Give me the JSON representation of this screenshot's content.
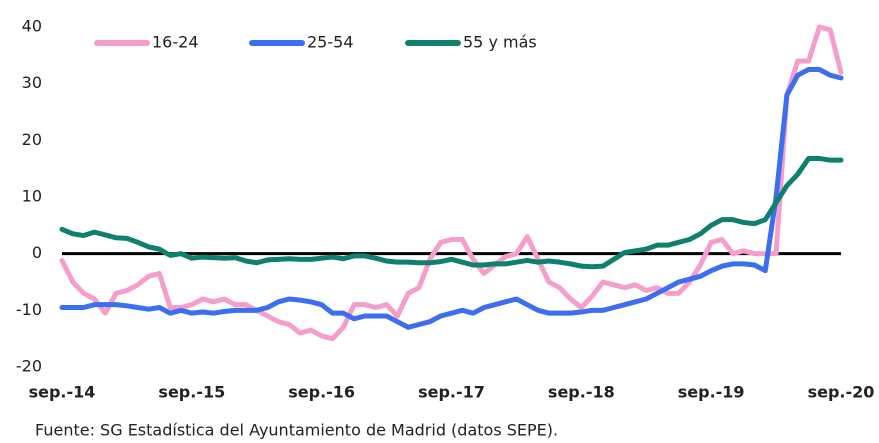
{
  "chart_data": {
    "type": "line",
    "categories": [
      "sep.-14",
      null,
      null,
      null,
      null,
      null,
      null,
      null,
      null,
      null,
      null,
      null,
      "sep.-15",
      null,
      null,
      null,
      null,
      null,
      null,
      null,
      null,
      null,
      null,
      null,
      "sep.-16",
      null,
      null,
      null,
      null,
      null,
      null,
      null,
      null,
      null,
      null,
      null,
      "sep.-17",
      null,
      null,
      null,
      null,
      null,
      null,
      null,
      null,
      null,
      null,
      null,
      "sep.-18",
      null,
      null,
      null,
      null,
      null,
      null,
      null,
      null,
      null,
      null,
      null,
      "sep.-19",
      null,
      null,
      null,
      null,
      null,
      null,
      null,
      null,
      null,
      null,
      null,
      "sep.-20"
    ],
    "series": [
      {
        "name": "16-24",
        "color": "#f59dcb",
        "values": [
          -1.2,
          -5,
          -7,
          -8,
          -10.5,
          -7,
          -6.5,
          -5.5,
          -4,
          -3.5,
          -9.5,
          -9.5,
          -9,
          -8,
          -8.5,
          -8,
          -9,
          -9,
          -10,
          -11,
          -12,
          -12.5,
          -14,
          -13.5,
          -14.5,
          -15,
          -13,
          -9,
          -9,
          -9.5,
          -9,
          -11,
          -7,
          -6,
          -1,
          2,
          2.5,
          2.5,
          -1,
          -3.5,
          -2,
          -0.5,
          0,
          3,
          -1,
          -5,
          -6,
          -8,
          -9.5,
          -7.5,
          -5,
          -5.5,
          -6,
          -5.5,
          -6.5,
          -6,
          -7,
          -7,
          -5,
          -2,
          2,
          2.5,
          0,
          0.5,
          0,
          0,
          0,
          28,
          34,
          34,
          40,
          39.5,
          32
        ]
      },
      {
        "name": "25-54",
        "color": "#3c6ef0",
        "values": [
          -9.5,
          -9.5,
          -9.5,
          -9,
          -9,
          -9,
          -9.2,
          -9.5,
          -9.8,
          -9.5,
          -10.5,
          -10,
          -10.5,
          -10.3,
          -10.5,
          -10.2,
          -10,
          -10,
          -10,
          -9.5,
          -8.5,
          -8,
          -8.2,
          -8.5,
          -9,
          -10.5,
          -10.5,
          -11.5,
          -11,
          -11,
          -11,
          -12,
          -13,
          -12.5,
          -12,
          -11,
          -10.5,
          -10,
          -10.5,
          -9.5,
          -9,
          -8.5,
          -8,
          -9,
          -10,
          -10.5,
          -10.5,
          -10.5,
          -10.3,
          -10,
          -10,
          -9.5,
          -9,
          -8.5,
          -8,
          -7,
          -6,
          -5,
          -4.5,
          -4,
          -3,
          -2.2,
          -1.8,
          -1.8,
          -2,
          -3,
          10,
          28,
          31.5,
          32.5,
          32.5,
          31.5,
          31
        ]
      },
      {
        "name": "55 y más",
        "color": "#0f7f6e",
        "values": [
          4.3,
          3.5,
          3.2,
          3.8,
          3.3,
          2.8,
          2.7,
          2,
          1.2,
          0.8,
          -0.3,
          0,
          -0.8,
          -0.6,
          -0.7,
          -0.8,
          -0.7,
          -1.3,
          -1.6,
          -1.1,
          -1,
          -0.9,
          -1,
          -1,
          -0.8,
          -0.6,
          -0.9,
          -0.4,
          -0.4,
          -0.8,
          -1.3,
          -1.5,
          -1.5,
          -1.6,
          -1.6,
          -1.4,
          -1,
          -1.5,
          -2,
          -2,
          -1.8,
          -1.8,
          -1.5,
          -1.2,
          -1.5,
          -1.3,
          -1.5,
          -1.8,
          -2.2,
          -2.3,
          -2.2,
          -1,
          0.2,
          0.5,
          0.8,
          1.5,
          1.5,
          2,
          2.5,
          3.5,
          5,
          6,
          6,
          5.5,
          5.3,
          6,
          9,
          12,
          14,
          16.8,
          16.8,
          16.5,
          16.5
        ]
      }
    ],
    "ylim": [
      -20,
      40
    ],
    "yticks": [
      -20,
      -10,
      0,
      10,
      20,
      30,
      40
    ],
    "grid": false,
    "legend": "top",
    "source": "Fuente: SG Estadística del Ayuntamiento de Madrid (datos SEPE)."
  }
}
